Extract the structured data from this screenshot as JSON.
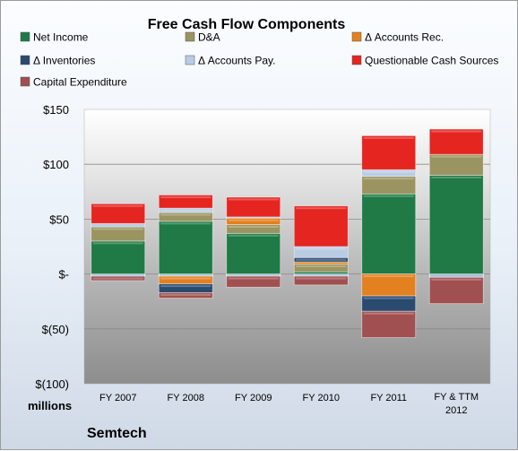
{
  "chart_data": {
    "type": "bar",
    "stacked": true,
    "title": "Free Cash Flow Components",
    "units_label": "millions",
    "company": "Semtech",
    "categories": [
      "FY 2007",
      "FY 2008",
      "FY 2009",
      "FY 2010",
      "FY 2011",
      "FY & TTM 2012"
    ],
    "yticks": [
      "$150",
      "$100",
      "$50",
      "$-",
      "$(50)",
      "$(100)"
    ],
    "ytick_values": [
      150,
      100,
      50,
      0,
      -50,
      -100
    ],
    "ylim": [
      -100,
      150
    ],
    "grid": true,
    "legend_position": "top",
    "series": [
      {
        "name": "Net Income",
        "color": "#1f7a45",
        "values": [
          30,
          48,
          37,
          2,
          73,
          90
        ]
      },
      {
        "name": "D&A",
        "color": "#9a9460",
        "values": [
          13,
          8,
          8,
          7,
          16,
          19
        ]
      },
      {
        "name": "Δ Accounts Rec.",
        "color": "#e3801f",
        "values": [
          0,
          -7,
          6,
          2,
          -20,
          0
        ]
      },
      {
        "name": "Δ Inventories",
        "color": "#2a4a70",
        "values": [
          0,
          -8,
          0,
          4,
          -14,
          0
        ]
      },
      {
        "name": "Δ Accounts Pay.",
        "color": "#b8cce4",
        "values": [
          3,
          4,
          1,
          10,
          6,
          0
        ]
      },
      {
        "name": "Questionable Cash Sources",
        "color": "#e52520",
        "values": [
          18,
          12,
          18,
          37,
          31,
          23
        ]
      },
      {
        "name": "Capital Expenditure",
        "color": "#a05050",
        "values": [
          -4,
          -5,
          -10,
          -8,
          -24,
          -24
        ]
      }
    ],
    "small_negative_offsets": [
      -2,
      -2,
      -2,
      -2,
      0,
      -3
    ]
  }
}
